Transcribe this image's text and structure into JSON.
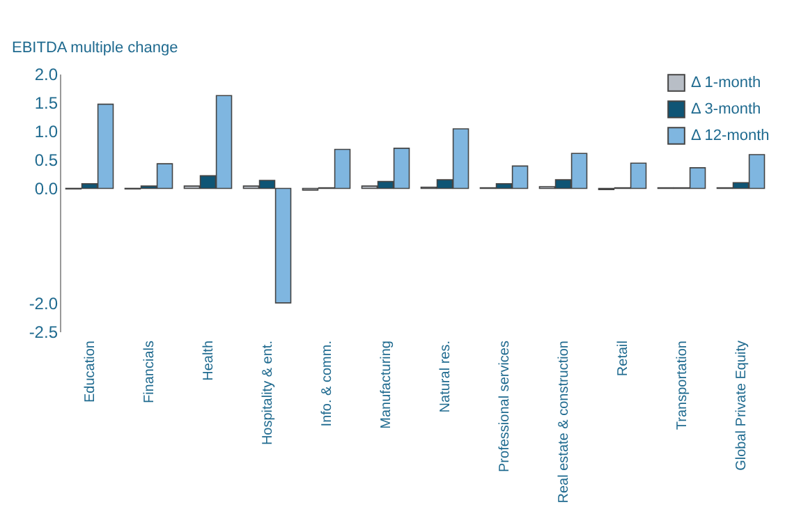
{
  "chart_data": {
    "type": "bar",
    "ylabel": "EBITDA multiple change",
    "categories": [
      "Education",
      "Financials",
      "Health",
      "Hospitality & ent.",
      "Info. & comm.",
      "Manufacturing",
      "Natural res.",
      "Professional services",
      "Real estate & construction",
      "Retail",
      "Transportation",
      "Global Private Equity"
    ],
    "series": [
      {
        "name": "Δ 1-month",
        "color": "#b8bec6",
        "values": [
          -0.01,
          -0.01,
          0.04,
          0.04,
          -0.03,
          0.04,
          0.02,
          0.01,
          0.03,
          -0.02,
          0.01,
          0.01
        ]
      },
      {
        "name": "Δ 3-month",
        "color": "#0f5575",
        "values": [
          0.08,
          0.04,
          0.22,
          0.14,
          0.01,
          0.12,
          0.15,
          0.08,
          0.15,
          0.01,
          0.01,
          0.1
        ]
      },
      {
        "name": "Δ 12-month",
        "color": "#7fb6e0",
        "values": [
          1.47,
          0.43,
          1.62,
          -2.0,
          0.68,
          0.7,
          1.04,
          0.39,
          0.61,
          0.44,
          0.36,
          0.59
        ]
      }
    ],
    "ylim": [
      -2.5,
      2.0
    ],
    "yticks": [
      {
        "value": -2.5,
        "label": "-2.5"
      },
      {
        "value": -2.0,
        "label": "-2.0"
      },
      {
        "value": 0,
        "label": "0.0"
      },
      {
        "value": 0.5,
        "label": "0.5"
      },
      {
        "value": 1,
        "label": "1.0"
      },
      {
        "value": 1.5,
        "label": "1.5"
      },
      {
        "value": 2,
        "label": "2.0"
      }
    ],
    "grid": false,
    "legend": "top right"
  }
}
